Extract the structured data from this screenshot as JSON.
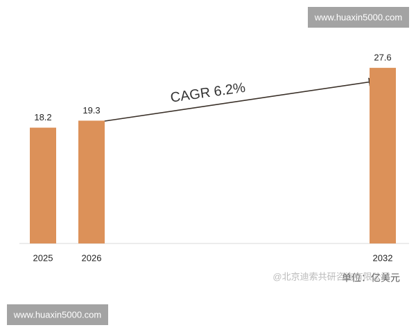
{
  "chart_data": {
    "type": "bar",
    "categories": [
      "2025",
      "2026",
      null,
      null,
      null,
      null,
      null,
      "2032"
    ],
    "values": [
      18.2,
      19.3,
      null,
      null,
      null,
      null,
      null,
      27.6
    ],
    "color": "#dc9159",
    "ylim": [
      0,
      30
    ],
    "annotations": [
      "CAGR  6.2%",
      "单位：亿美元",
      "@北京迪索共研咨询有限公司"
    ],
    "watermarks": [
      "www.huaxin5000.com",
      "www.huaxin5000.com"
    ]
  }
}
